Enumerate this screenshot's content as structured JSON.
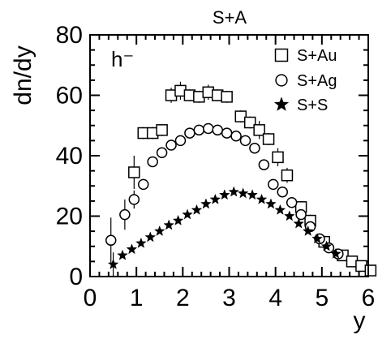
{
  "chart_data": {
    "type": "scatter",
    "title": "S+A",
    "xlabel": "y",
    "ylabel": "dn/dy",
    "annotation": "h⁻",
    "xlim": [
      0,
      6
    ],
    "ylim": [
      0,
      80
    ],
    "x_ticks": [
      "0",
      "1",
      "2",
      "3",
      "4",
      "5",
      "6"
    ],
    "y_ticks": [
      "0",
      "20",
      "40",
      "60",
      "80"
    ],
    "legend_position": "top-right",
    "series": [
      {
        "name": "S+Au",
        "marker": "open-square",
        "points": [
          {
            "x": 0.95,
            "y": 34.5,
            "err": 5.5
          },
          {
            "x": 1.15,
            "y": 47.5,
            "err": 2.0
          },
          {
            "x": 1.35,
            "y": 47.5,
            "err": 2.0
          },
          {
            "x": 1.55,
            "y": 48.5,
            "err": 2.0
          },
          {
            "x": 1.75,
            "y": 60.0,
            "err": 2.5
          },
          {
            "x": 1.95,
            "y": 61.5,
            "err": 3.0
          },
          {
            "x": 2.15,
            "y": 60.0,
            "err": 2.0
          },
          {
            "x": 2.35,
            "y": 59.5,
            "err": 2.0
          },
          {
            "x": 2.55,
            "y": 61.0,
            "err": 2.5
          },
          {
            "x": 2.75,
            "y": 60.0,
            "err": 2.0
          },
          {
            "x": 2.95,
            "y": 59.5,
            "err": 2.0
          },
          {
            "x": 3.25,
            "y": 53.0,
            "err": 2.0
          },
          {
            "x": 3.45,
            "y": 51.0,
            "err": 2.0
          },
          {
            "x": 3.65,
            "y": 48.5,
            "err": 3.0
          },
          {
            "x": 3.85,
            "y": 45.5,
            "err": 2.0
          },
          {
            "x": 4.05,
            "y": 39.5,
            "err": 3.0
          },
          {
            "x": 4.25,
            "y": 33.5,
            "err": 2.5
          },
          {
            "x": 4.55,
            "y": 23.0,
            "err": 2.0
          },
          {
            "x": 4.75,
            "y": 18.5,
            "err": 2.0
          },
          {
            "x": 5.05,
            "y": 11.5,
            "err": 2.0
          },
          {
            "x": 5.45,
            "y": 7.0,
            "err": 1.0
          },
          {
            "x": 5.65,
            "y": 5.0,
            "err": 1.0
          },
          {
            "x": 5.85,
            "y": 3.5,
            "err": 1.0
          },
          {
            "x": 6.05,
            "y": 2.0,
            "err": 1.0
          }
        ]
      },
      {
        "name": "S+Ag",
        "marker": "open-circle",
        "points": [
          {
            "x": 0.45,
            "y": 12.0,
            "err": 7.5
          },
          {
            "x": 0.75,
            "y": 20.5,
            "err": 5.0
          },
          {
            "x": 0.95,
            "y": 25.5,
            "err": 3.0
          },
          {
            "x": 1.15,
            "y": 30.5,
            "err": 0
          },
          {
            "x": 1.35,
            "y": 38.0,
            "err": 0
          },
          {
            "x": 1.55,
            "y": 41.0,
            "err": 0
          },
          {
            "x": 1.75,
            "y": 43.5,
            "err": 0
          },
          {
            "x": 1.95,
            "y": 45.0,
            "err": 0
          },
          {
            "x": 2.15,
            "y": 47.5,
            "err": 0
          },
          {
            "x": 2.35,
            "y": 48.5,
            "err": 0
          },
          {
            "x": 2.55,
            "y": 49.0,
            "err": 0
          },
          {
            "x": 2.75,
            "y": 48.5,
            "err": 0
          },
          {
            "x": 2.95,
            "y": 47.5,
            "err": 0
          },
          {
            "x": 3.15,
            "y": 46.5,
            "err": 0
          },
          {
            "x": 3.35,
            "y": 45.0,
            "err": 0
          },
          {
            "x": 3.55,
            "y": 42.5,
            "err": 0
          },
          {
            "x": 3.75,
            "y": 37.0,
            "err": 0
          },
          {
            "x": 3.95,
            "y": 30.5,
            "err": 0
          },
          {
            "x": 4.15,
            "y": 28.0,
            "err": 0
          },
          {
            "x": 4.35,
            "y": 24.5,
            "err": 0
          },
          {
            "x": 4.55,
            "y": 20.5,
            "err": 0
          },
          {
            "x": 4.75,
            "y": 16.5,
            "err": 0
          },
          {
            "x": 4.95,
            "y": 12.5,
            "err": 0
          },
          {
            "x": 5.15,
            "y": 9.5,
            "err": 0
          },
          {
            "x": 5.35,
            "y": 7.5,
            "err": 0
          }
        ]
      },
      {
        "name": "S+S",
        "marker": "filled-star",
        "points": [
          {
            "x": 0.5,
            "y": 4.0,
            "err": 4.0
          },
          {
            "x": 0.7,
            "y": 7.0,
            "err": 0
          },
          {
            "x": 0.9,
            "y": 9.0,
            "err": 0
          },
          {
            "x": 1.1,
            "y": 11.0,
            "err": 0
          },
          {
            "x": 1.3,
            "y": 13.0,
            "err": 0
          },
          {
            "x": 1.5,
            "y": 15.0,
            "err": 0
          },
          {
            "x": 1.7,
            "y": 17.0,
            "err": 0
          },
          {
            "x": 1.9,
            "y": 18.5,
            "err": 0
          },
          {
            "x": 2.1,
            "y": 20.5,
            "err": 0
          },
          {
            "x": 2.3,
            "y": 22.0,
            "err": 0
          },
          {
            "x": 2.5,
            "y": 24.0,
            "err": 0
          },
          {
            "x": 2.7,
            "y": 25.5,
            "err": 0
          },
          {
            "x": 2.9,
            "y": 27.0,
            "err": 0
          },
          {
            "x": 3.1,
            "y": 28.0,
            "err": 0
          },
          {
            "x": 3.3,
            "y": 27.5,
            "err": 0
          },
          {
            "x": 3.5,
            "y": 27.0,
            "err": 0
          },
          {
            "x": 3.7,
            "y": 25.5,
            "err": 0
          },
          {
            "x": 3.9,
            "y": 24.0,
            "err": 0
          },
          {
            "x": 4.1,
            "y": 22.0,
            "err": 0
          },
          {
            "x": 4.3,
            "y": 20.0,
            "err": 0
          },
          {
            "x": 4.5,
            "y": 17.5,
            "err": 0
          },
          {
            "x": 4.7,
            "y": 15.0,
            "err": 0
          },
          {
            "x": 4.9,
            "y": 12.5,
            "err": 0
          },
          {
            "x": 5.1,
            "y": 10.0,
            "err": 0
          },
          {
            "x": 5.3,
            "y": 7.5,
            "err": 0
          }
        ]
      }
    ]
  }
}
